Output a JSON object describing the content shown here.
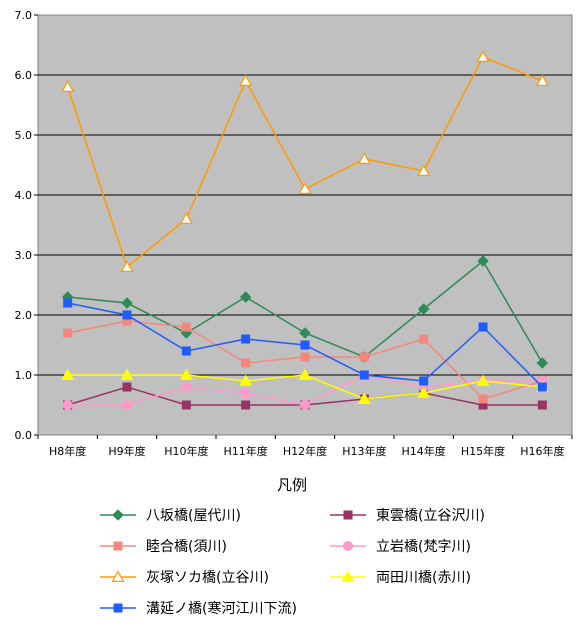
{
  "chart_data": {
    "type": "line",
    "title": "",
    "xlabel": "",
    "ylabel": "",
    "ylim": [
      0,
      7
    ],
    "yticks": [
      "0.0",
      "1.0",
      "2.0",
      "3.0",
      "4.0",
      "5.0",
      "6.0",
      "7.0"
    ],
    "grid": true,
    "categories": [
      "H8年度",
      "H9年度",
      "H10年度",
      "H11年度",
      "H12年度",
      "H13年度",
      "H14年度",
      "H15年度",
      "H16年度"
    ],
    "legend_title": "凡例",
    "legend_position": "bottom",
    "series": [
      {
        "name": "八坂橋(屋代川)",
        "color": "#2e8b57",
        "marker": "diamond",
        "values": [
          2.3,
          2.2,
          1.7,
          2.3,
          1.7,
          1.3,
          2.1,
          2.9,
          1.2
        ]
      },
      {
        "name": "東雲橋(立谷沢川)",
        "color": "#993366",
        "marker": "square",
        "values": [
          0.5,
          0.8,
          0.5,
          0.5,
          0.5,
          0.6,
          0.7,
          0.5,
          0.5
        ]
      },
      {
        "name": "睦合橋(須川)",
        "color": "#f4877d",
        "marker": "square",
        "values": [
          1.7,
          1.9,
          1.8,
          1.2,
          1.3,
          1.3,
          1.6,
          0.6,
          0.9
        ]
      },
      {
        "name": "立岩橋(梵字川)",
        "color": "#ff99cc",
        "marker": "circle",
        "values": [
          0.5,
          0.5,
          0.8,
          0.7,
          0.5,
          1.0,
          0.8,
          0.9,
          0.9
        ]
      },
      {
        "name": "灰塚ソカ橋(立谷川)",
        "color": "#ff9900",
        "marker": "triangle-open",
        "values": [
          5.8,
          2.8,
          3.6,
          5.9,
          4.1,
          4.6,
          4.4,
          6.3,
          5.9
        ]
      },
      {
        "name": "両田川橋(赤川)",
        "color": "#ffff00",
        "marker": "triangle",
        "values": [
          1.0,
          1.0,
          1.0,
          0.9,
          1.0,
          0.6,
          0.7,
          0.9,
          0.8
        ]
      },
      {
        "name": "溝延ノ橋(寒河江川下流)",
        "color": "#1f5cff",
        "marker": "square",
        "values": [
          2.2,
          2.0,
          1.4,
          1.6,
          1.5,
          1.0,
          0.9,
          1.8,
          0.8
        ]
      }
    ]
  }
}
